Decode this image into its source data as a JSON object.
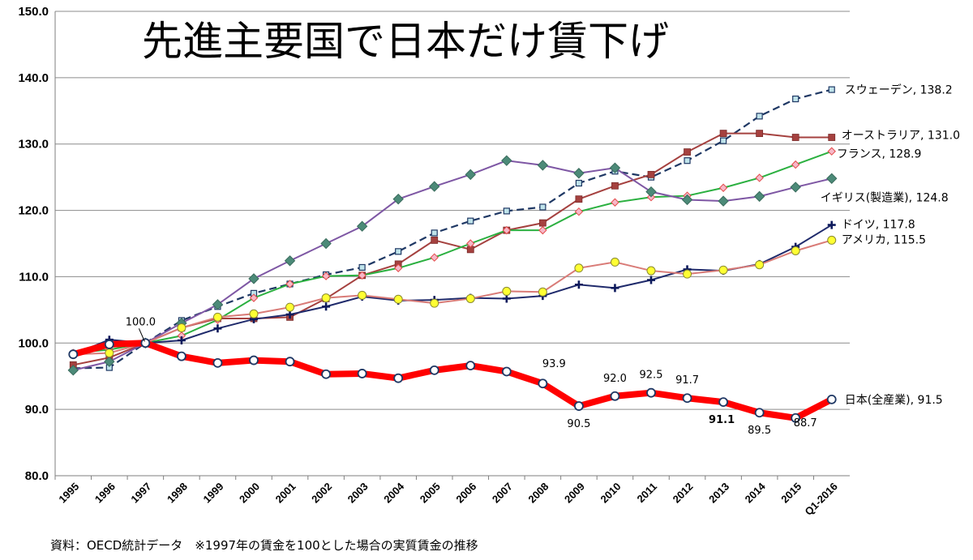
{
  "chart_data": {
    "type": "line",
    "title": "先進主要国で日本だけ賃下げ",
    "source_note": "資料：OECD統計データ　※1997年の賃金を100とした場合の実質賃金の推移",
    "categories": [
      "1995",
      "1996",
      "1997",
      "1998",
      "1999",
      "2000",
      "2001",
      "2002",
      "2003",
      "2004",
      "2005",
      "2006",
      "2007",
      "2008",
      "2009",
      "2010",
      "2011",
      "2012",
      "2013",
      "2014",
      "2015",
      "Q1-2016"
    ],
    "ylim": [
      80,
      150
    ],
    "y_ticks": [
      "80.0",
      "90.0",
      "100.0",
      "110.0",
      "120.0",
      "130.0",
      "140.0",
      "150.0"
    ],
    "xlabel": "",
    "ylabel": "",
    "grid": true,
    "series": [
      {
        "name": "スウェーデン",
        "end_label": "スウェーデン, 138.2",
        "color": "#1f3864",
        "style": "dashed",
        "marker": "square-small",
        "values": [
          96.2,
          96.3,
          100.0,
          103.4,
          105.5,
          107.5,
          108.9,
          110.3,
          111.4,
          113.8,
          116.6,
          118.4,
          119.9,
          120.5,
          124.1,
          125.9,
          125.0,
          127.5,
          130.5,
          134.2,
          136.8,
          138.2
        ]
      },
      {
        "name": "オーストラリア",
        "end_label": "オーストラリア, 131.0",
        "color": "#a5413f",
        "style": "solid",
        "marker": "square",
        "values": [
          96.7,
          97.8,
          100.0,
          102.3,
          103.7,
          103.7,
          103.9,
          106.7,
          110.2,
          111.9,
          115.5,
          114.1,
          117.0,
          118.1,
          121.7,
          123.7,
          125.4,
          128.8,
          131.6,
          131.6,
          131.0,
          131.0
        ]
      },
      {
        "name": "フランス",
        "end_label": "フランス, 128.9",
        "color": "#2bb040",
        "style": "solid",
        "marker": "diamond-pink",
        "values": [
          98.5,
          99.0,
          100.0,
          101.1,
          103.5,
          106.8,
          108.9,
          110.1,
          110.2,
          111.3,
          112.9,
          115.0,
          117.0,
          117.0,
          119.8,
          121.2,
          122.0,
          122.2,
          123.4,
          124.9,
          126.9,
          128.9
        ]
      },
      {
        "name": "イギリス(製造業)",
        "end_label": "イギリス(製造業), 124.8",
        "color": "#7e57a4",
        "style": "solid",
        "marker": "diamond",
        "values": [
          95.9,
          97.2,
          100.0,
          103.0,
          105.8,
          109.7,
          112.4,
          115.0,
          117.6,
          121.7,
          123.6,
          125.4,
          127.5,
          126.8,
          125.6,
          126.4,
          122.8,
          121.6,
          121.4,
          122.1,
          123.5,
          124.8
        ]
      },
      {
        "name": "ドイツ",
        "end_label": "ドイツ, 117.8",
        "color": "#1f2a6b",
        "style": "solid",
        "marker": "plus",
        "values": [
          98.3,
          100.5,
          100.0,
          100.4,
          102.2,
          103.6,
          104.3,
          105.5,
          107.0,
          106.4,
          106.5,
          106.8,
          106.7,
          107.1,
          108.8,
          108.3,
          109.5,
          111.1,
          110.9,
          111.9,
          114.5,
          117.8
        ]
      },
      {
        "name": "アメリカ",
        "end_label": "アメリカ, 115.5",
        "color": "#d97b77",
        "style": "solid",
        "marker": "circle-yellow",
        "values": [
          98.3,
          98.5,
          100.0,
          102.3,
          103.9,
          104.4,
          105.4,
          106.8,
          107.2,
          106.6,
          106.0,
          106.7,
          107.8,
          107.7,
          111.3,
          112.2,
          110.9,
          110.4,
          111.0,
          111.8,
          113.9,
          115.5
        ]
      },
      {
        "name": "日本(全産業)",
        "end_label": "日本(全産業), 91.5",
        "color": "#ff0000",
        "style": "thick",
        "marker": "circle-white",
        "values": [
          98.3,
          99.8,
          100.0,
          98.0,
          97.0,
          97.4,
          97.2,
          95.3,
          95.4,
          94.7,
          95.9,
          96.6,
          95.7,
          93.9,
          90.5,
          92.0,
          92.5,
          91.7,
          91.1,
          89.5,
          88.7,
          91.5
        ]
      }
    ],
    "data_labels": [
      {
        "text": "100.0",
        "category": "1997",
        "value": 100.0,
        "bold": false
      },
      {
        "text": "93.9",
        "category": "2008",
        "value": 93.9,
        "bold": false
      },
      {
        "text": "90.5",
        "category": "2009",
        "value": 90.5,
        "bold": false
      },
      {
        "text": "92.0",
        "category": "2010",
        "value": 92.0,
        "bold": false
      },
      {
        "text": "92.5",
        "category": "2011",
        "value": 92.5,
        "bold": false
      },
      {
        "text": "91.7",
        "category": "2012",
        "value": 91.7,
        "bold": false
      },
      {
        "text": "91.1",
        "category": "2013",
        "value": 91.1,
        "bold": true
      },
      {
        "text": "89.5",
        "category": "2014",
        "value": 89.5,
        "bold": false
      },
      {
        "text": "88.7",
        "category": "2015",
        "value": 88.7,
        "bold": false
      }
    ]
  }
}
